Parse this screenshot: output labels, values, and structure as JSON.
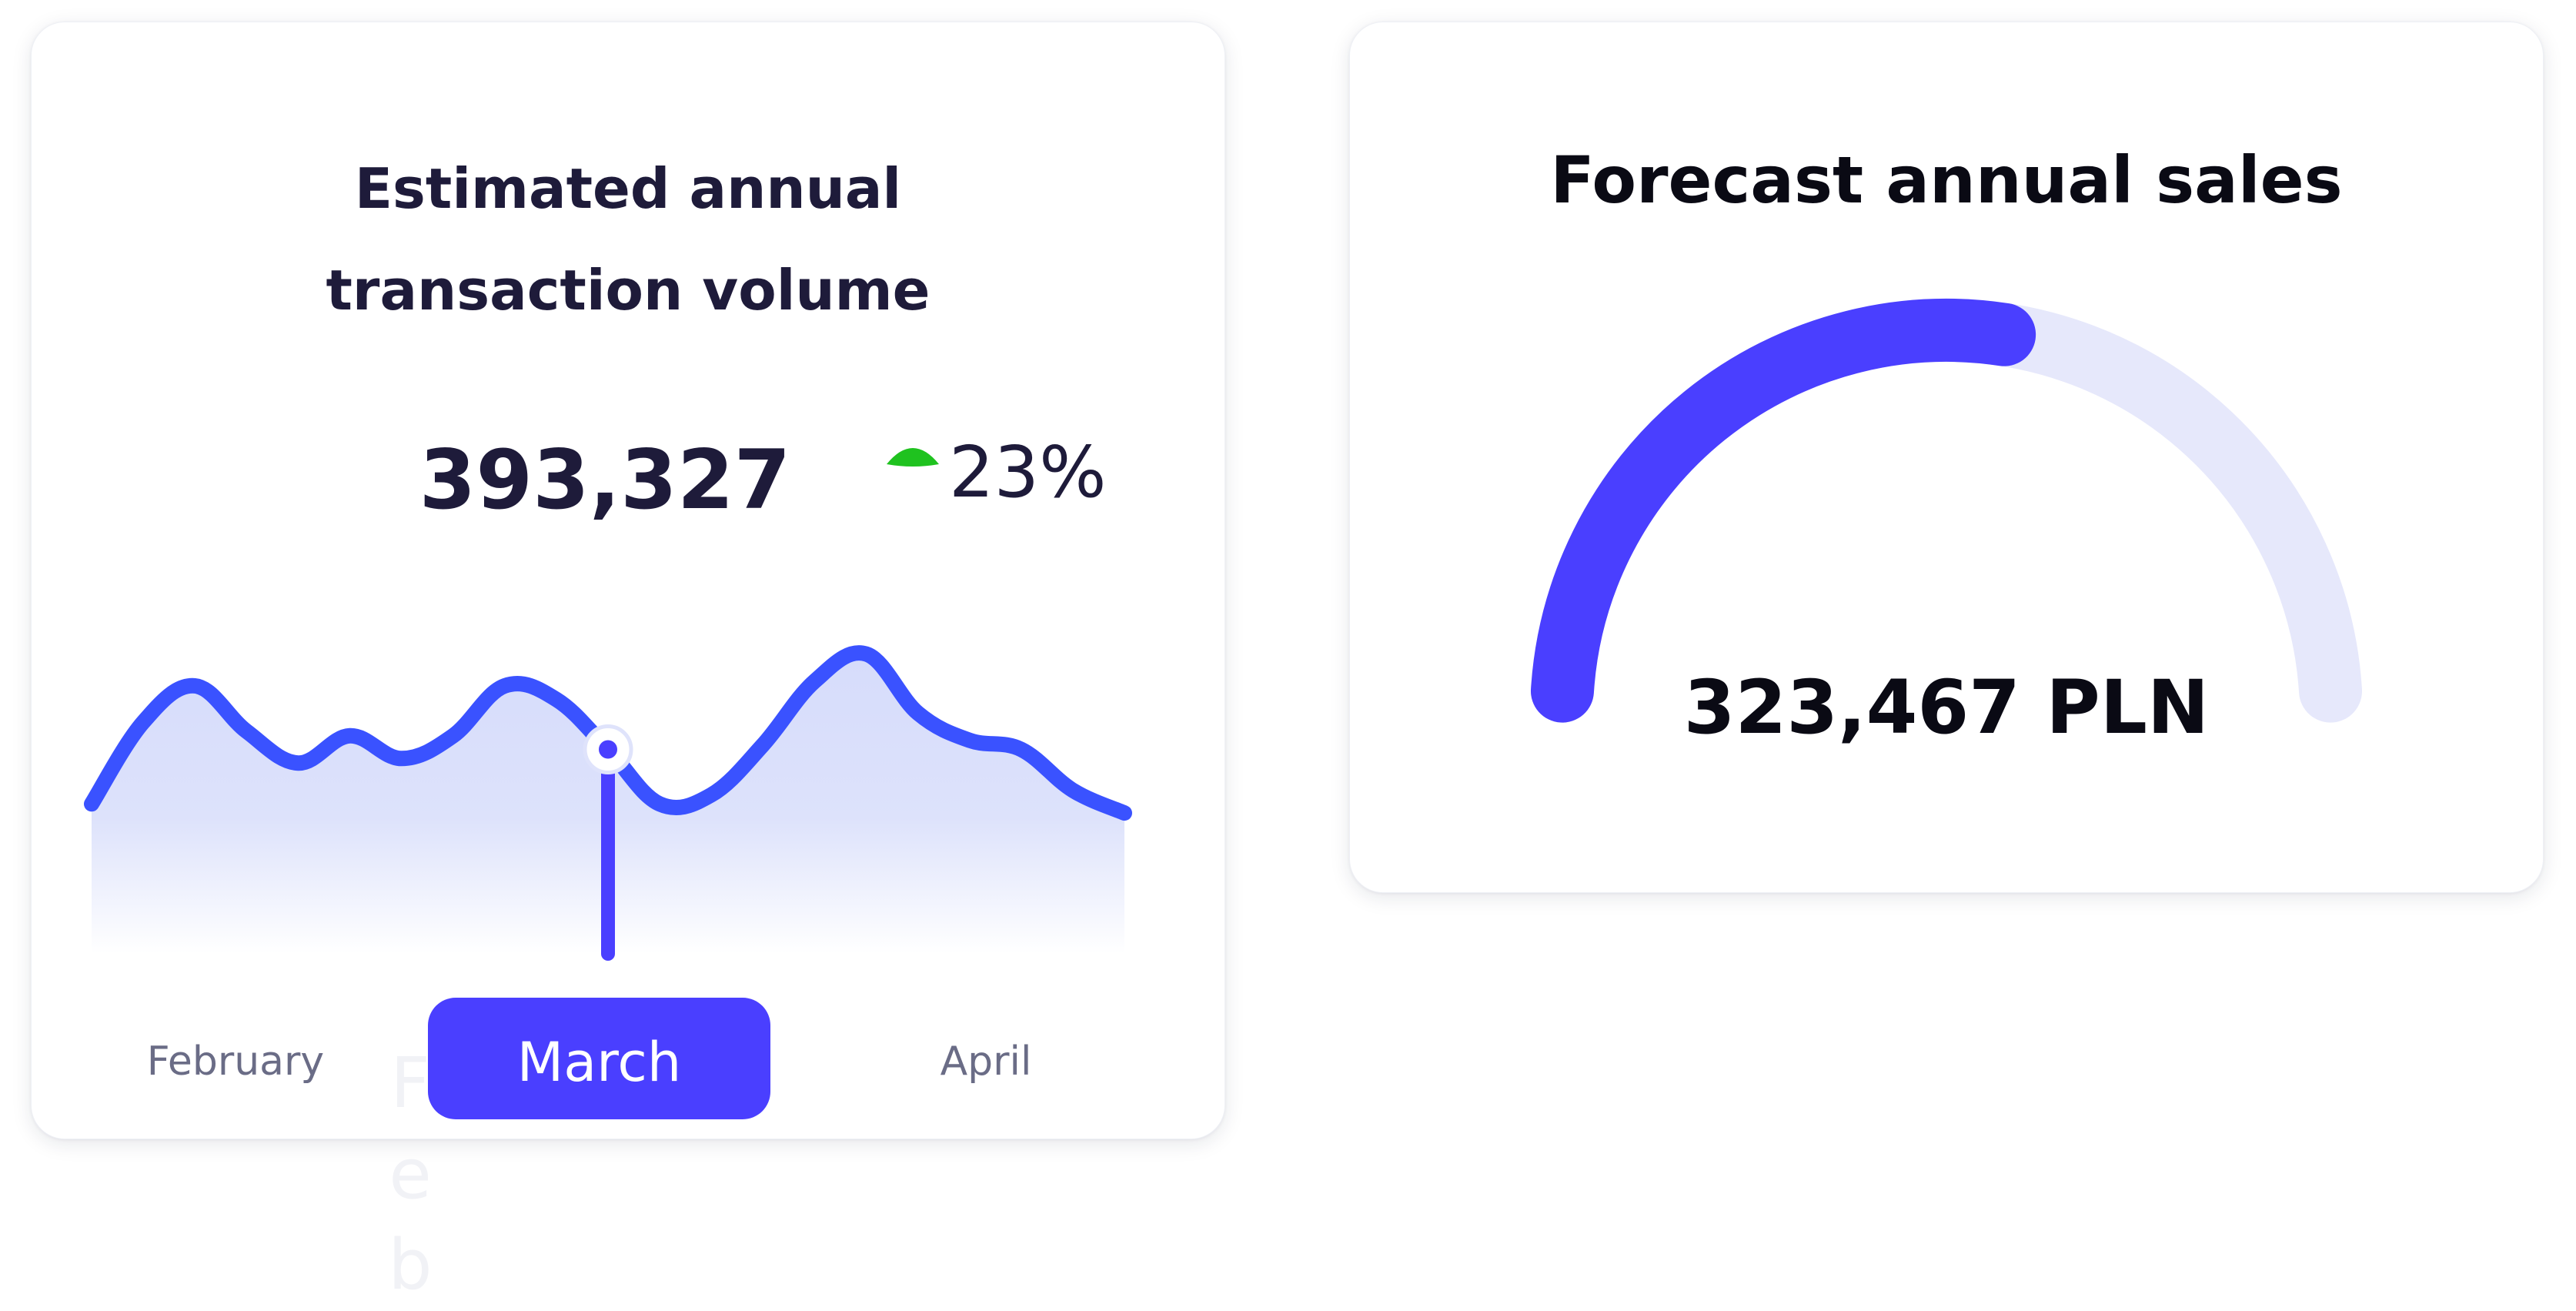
{
  "transaction_card": {
    "title_line1": "Estimated annual",
    "title_line2": "transaction volume",
    "value": "393,327",
    "change": "23%",
    "trend_icon": "triangle-up-icon",
    "months": [
      "February",
      "March",
      "April"
    ],
    "selected_month": "March",
    "colors": {
      "line": "#3a52ff",
      "highlight": "#4a3fff",
      "trend": "#1fc21f"
    }
  },
  "sales_card": {
    "title": "Forecast annual sales",
    "value": "323,467 PLN",
    "progress": 0.55,
    "colors": {
      "filled": "#4a3fff",
      "track": "#e6e8fb"
    }
  },
  "chart_data": {
    "type": "area",
    "x": [
      0,
      1,
      2,
      3,
      4,
      5,
      6,
      7,
      8,
      9,
      10,
      11,
      12,
      13,
      14,
      15,
      16,
      17,
      18,
      19,
      20
    ],
    "values": [
      33,
      51,
      59,
      49,
      42,
      48,
      43,
      48,
      59,
      56,
      45,
      33,
      35,
      46,
      60,
      66,
      53,
      47,
      45,
      36,
      31
    ],
    "ylim": [
      0,
      100
    ],
    "marker_index": 10,
    "marker_label": "393,327",
    "change": "23%",
    "categories": [
      "February",
      "March",
      "April"
    ],
    "selected_category": "March",
    "grid": false,
    "legend": "none"
  }
}
